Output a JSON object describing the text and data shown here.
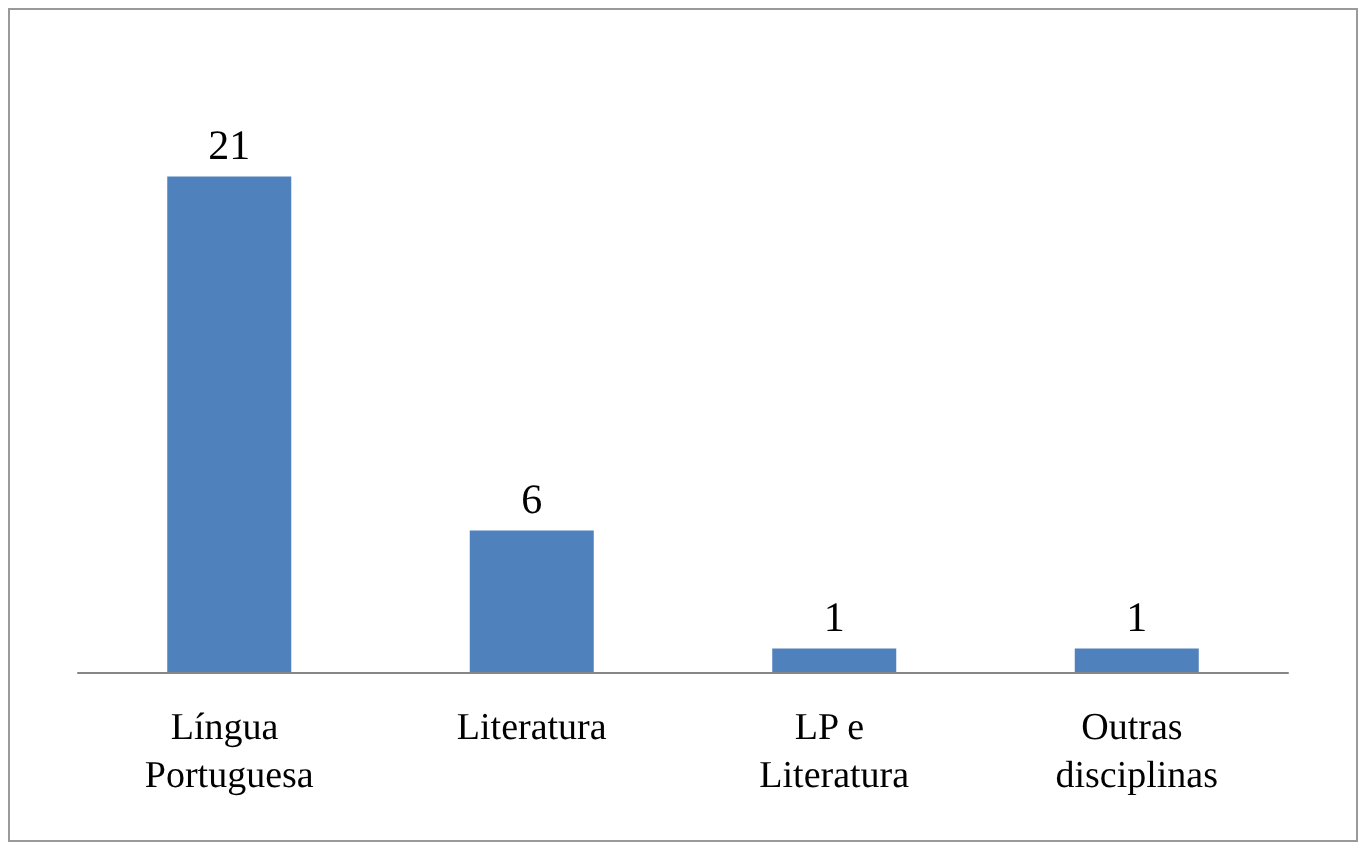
{
  "chart_data": {
    "type": "bar",
    "categories": [
      "Língua Portuguesa",
      "Literatura",
      "LP e Literatura",
      "Outras disciplinas"
    ],
    "values": [
      21,
      6,
      1,
      1
    ],
    "color": "#4f81bd",
    "data_labels": true
  }
}
